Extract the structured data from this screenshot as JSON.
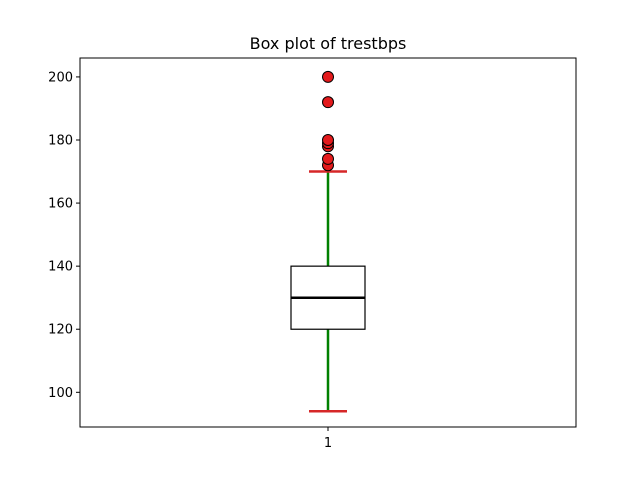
{
  "chart_data": {
    "type": "box",
    "title": "Box plot of trestbps",
    "xlabel": "",
    "ylabel": "",
    "ylim": [
      89,
      206
    ],
    "yticks": [
      100,
      120,
      140,
      160,
      180,
      200
    ],
    "categories": [
      "1"
    ],
    "boxes": [
      {
        "category": "1",
        "whisker_low": 94,
        "q1": 120,
        "median": 130,
        "q3": 140,
        "whisker_high": 170,
        "outliers": [
          172,
          174,
          178,
          179,
          180,
          192,
          200
        ]
      }
    ],
    "colors": {
      "box": "#000000",
      "median": "#000000",
      "whisker": "#008000",
      "cap": "#d62728",
      "outlier_fill": "#e31a1c",
      "outlier_edge": "#000000"
    },
    "grid": false,
    "legend": "none"
  }
}
